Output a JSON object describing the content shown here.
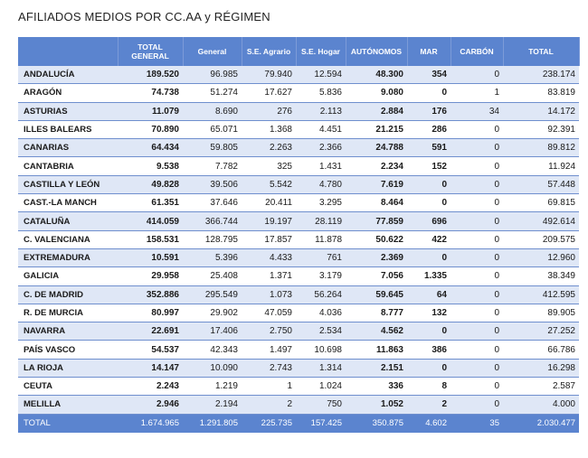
{
  "title": "AFILIADOS MEDIOS POR CC.AA y RÉGIMEN",
  "headers": [
    "",
    "TOTAL GENERAL",
    "General",
    "S.E. Agrario",
    "S.E. Hogar",
    "AUTÓNOMOS",
    "MAR",
    "CARBÓN",
    "TOTAL"
  ],
  "rows": [
    [
      "ANDALUCÍA",
      "189.520",
      "96.985",
      "79.940",
      "12.594",
      "48.300",
      "354",
      "0",
      "238.174"
    ],
    [
      "ARAGÓN",
      "74.738",
      "51.274",
      "17.627",
      "5.836",
      "9.080",
      "0",
      "1",
      "83.819"
    ],
    [
      "ASTURIAS",
      "11.079",
      "8.690",
      "276",
      "2.113",
      "2.884",
      "176",
      "34",
      "14.172"
    ],
    [
      "ILLES BALEARS",
      "70.890",
      "65.071",
      "1.368",
      "4.451",
      "21.215",
      "286",
      "0",
      "92.391"
    ],
    [
      "CANARIAS",
      "64.434",
      "59.805",
      "2.263",
      "2.366",
      "24.788",
      "591",
      "0",
      "89.812"
    ],
    [
      "CANTABRIA",
      "9.538",
      "7.782",
      "325",
      "1.431",
      "2.234",
      "152",
      "0",
      "11.924"
    ],
    [
      "CASTILLA Y LEÓN",
      "49.828",
      "39.506",
      "5.542",
      "4.780",
      "7.619",
      "0",
      "0",
      "57.448"
    ],
    [
      "CAST.-LA MANCH",
      "61.351",
      "37.646",
      "20.411",
      "3.295",
      "8.464",
      "0",
      "0",
      "69.815"
    ],
    [
      "CATALUÑA",
      "414.059",
      "366.744",
      "19.197",
      "28.119",
      "77.859",
      "696",
      "0",
      "492.614"
    ],
    [
      "C. VALENCIANA",
      "158.531",
      "128.795",
      "17.857",
      "11.878",
      "50.622",
      "422",
      "0",
      "209.575"
    ],
    [
      "EXTREMADURA",
      "10.591",
      "5.396",
      "4.433",
      "761",
      "2.369",
      "0",
      "0",
      "12.960"
    ],
    [
      "GALICIA",
      "29.958",
      "25.408",
      "1.371",
      "3.179",
      "7.056",
      "1.335",
      "0",
      "38.349"
    ],
    [
      "C. DE MADRID",
      "352.886",
      "295.549",
      "1.073",
      "56.264",
      "59.645",
      "64",
      "0",
      "412.595"
    ],
    [
      "R. DE MURCIA",
      "80.997",
      "29.902",
      "47.059",
      "4.036",
      "8.777",
      "132",
      "0",
      "89.905"
    ],
    [
      "NAVARRA",
      "22.691",
      "17.406",
      "2.750",
      "2.534",
      "4.562",
      "0",
      "0",
      "27.252"
    ],
    [
      "PAÍS VASCO",
      "54.537",
      "42.343",
      "1.497",
      "10.698",
      "11.863",
      "386",
      "0",
      "66.786"
    ],
    [
      "LA RIOJA",
      "14.147",
      "10.090",
      "2.743",
      "1.314",
      "2.151",
      "0",
      "0",
      "16.298"
    ],
    [
      "CEUTA",
      "2.243",
      "1.219",
      "1",
      "1.024",
      "336",
      "8",
      "0",
      "2.587"
    ],
    [
      "MELILLA",
      "2.946",
      "2.194",
      "2",
      "750",
      "1.052",
      "2",
      "0",
      "4.000"
    ]
  ],
  "total_row": [
    "TOTAL",
    "1.674.965",
    "1.291.805",
    "225.735",
    "157.425",
    "350.875",
    "4.602",
    "35",
    "2.030.477"
  ]
}
